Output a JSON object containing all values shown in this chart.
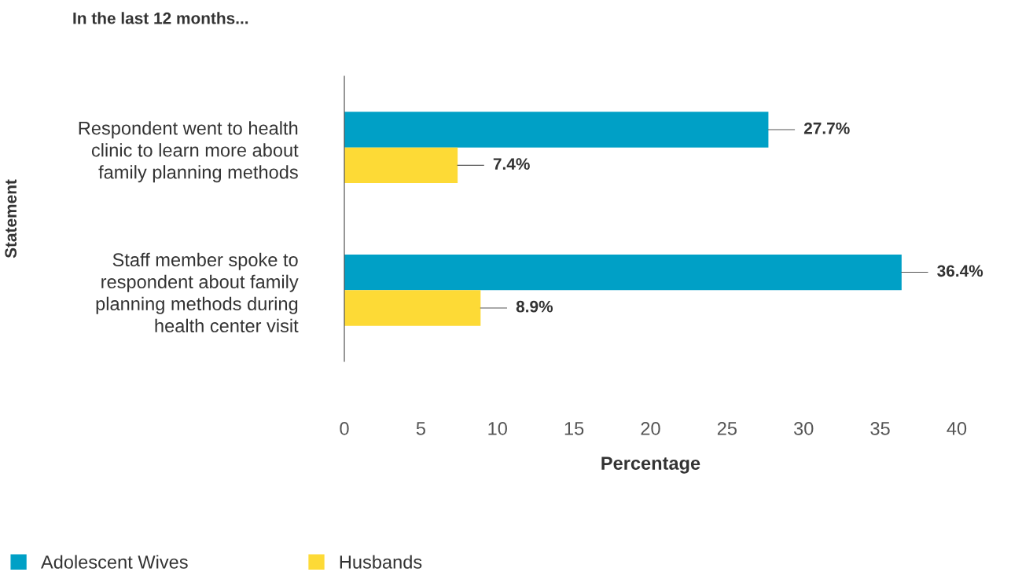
{
  "chart_data": {
    "type": "bar",
    "orientation": "horizontal",
    "title": "In the last 12 months...",
    "xlabel": "Percentage",
    "ylabel": "Statement",
    "categories": [
      "Respondent went to health clinic to learn more about family planning methods",
      "Staff member spoke to respondent about family planning methods during health center visit"
    ],
    "series": [
      {
        "name": "Adolescent Wives",
        "color": "#00a0c6",
        "values": [
          27.7,
          36.4
        ],
        "value_labels": [
          "27.7%",
          "36.4%"
        ]
      },
      {
        "name": "Husbands",
        "color": "#fdda36",
        "values": [
          7.4,
          8.9
        ],
        "value_labels": [
          "7.4%",
          "8.9%"
        ]
      }
    ],
    "xlim": [
      0,
      40
    ],
    "xticks": [
      0,
      5,
      10,
      15,
      20,
      25,
      30,
      35,
      40
    ],
    "grid": false,
    "legend": "bottom left"
  }
}
